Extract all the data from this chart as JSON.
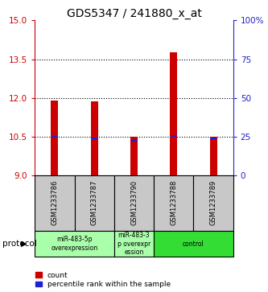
{
  "title": "GDS5347 / 241880_x_at",
  "samples": [
    "GSM1233786",
    "GSM1233787",
    "GSM1233790",
    "GSM1233788",
    "GSM1233789"
  ],
  "bar_bottoms": [
    9,
    9,
    9,
    9,
    9
  ],
  "bar_tops": [
    11.9,
    11.85,
    10.5,
    13.75,
    10.5
  ],
  "percentile_values": [
    10.5,
    10.42,
    10.35,
    10.52,
    10.43
  ],
  "ylim_left": [
    9,
    15
  ],
  "ylim_right": [
    0,
    100
  ],
  "yticks_left": [
    9,
    10.5,
    12,
    13.5,
    15
  ],
  "ytick_labels_right": [
    "0",
    "25",
    "50",
    "75",
    "100%"
  ],
  "yticks_right": [
    0,
    25,
    50,
    75,
    100
  ],
  "bar_color": "#cc0000",
  "percentile_color": "#2222cc",
  "sample_box_color": "#c8c8c8",
  "protocol_groups": [
    {
      "label": "miR-483-5p\noverexpression",
      "samples": [
        0,
        1
      ],
      "color": "#aaffaa"
    },
    {
      "label": "miR-483-3\np overexpr\nession",
      "samples": [
        2
      ],
      "color": "#aaffaa"
    },
    {
      "label": "control",
      "samples": [
        3,
        4
      ],
      "color": "#33dd33"
    }
  ],
  "protocol_label": "protocol",
  "legend_count_label": "count",
  "legend_percentile_label": "percentile rank within the sample",
  "title_fontsize": 10,
  "axis_label_color_left": "#cc0000",
  "axis_label_color_right": "#2222cc",
  "bar_width": 0.18
}
